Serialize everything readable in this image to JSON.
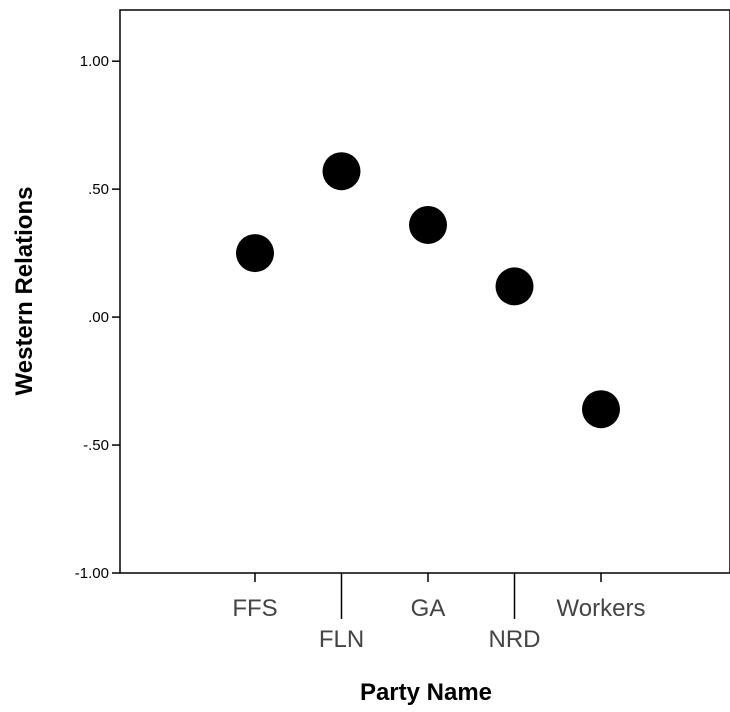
{
  "chart_data": {
    "type": "scatter",
    "title": "",
    "xlabel": "Party Name",
    "ylabel": "Western Relations",
    "categories": [
      "FFS",
      "FLN",
      "GA",
      "NRD",
      "Workers"
    ],
    "series": [
      {
        "values": [
          0.25,
          0.57,
          0.36,
          0.12,
          -0.36
        ]
      }
    ],
    "ylim": [
      -1.0,
      1.2
    ],
    "yticks": [
      1.0,
      0.5,
      0.0,
      -0.5,
      -1.0
    ],
    "ytick_labels": [
      "1.00",
      ".50",
      ".00",
      "-.50",
      "-1.00"
    ],
    "grid": false,
    "legend": "none",
    "marker_color": "#000000"
  }
}
